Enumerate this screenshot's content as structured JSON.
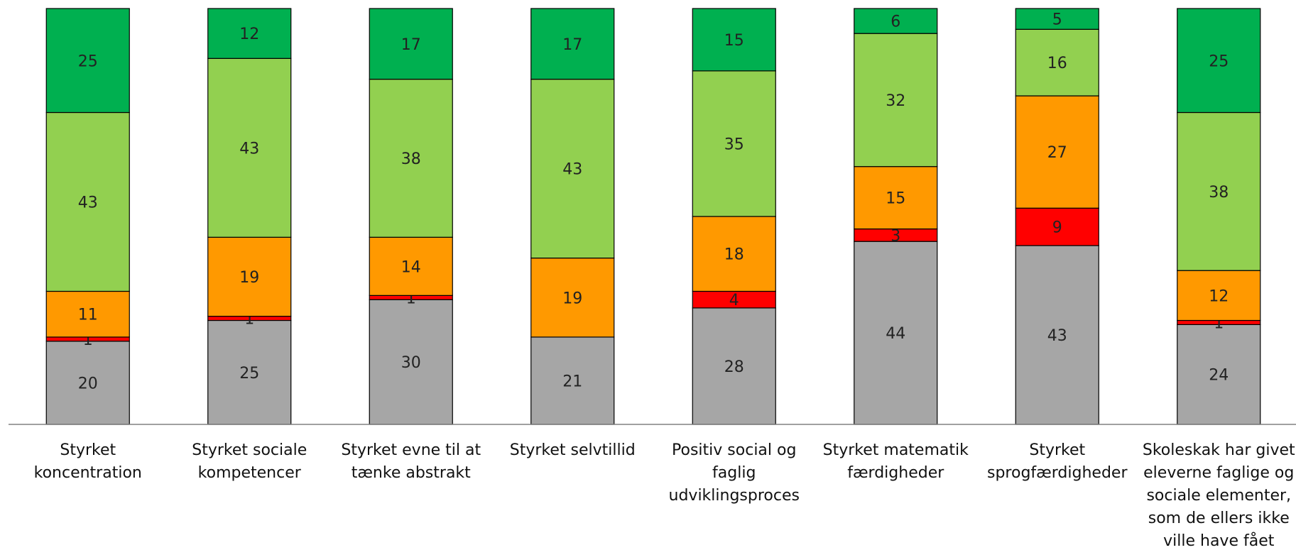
{
  "chart_data": {
    "type": "bar",
    "stacked": true,
    "normalized_percent": true,
    "categories": [
      "Styrket koncentration",
      "Styrket sociale kompetencer",
      "Styrket evne til at tænke abstrakt",
      "Styrket selvtillid",
      "Positiv social og faglig udviklingsproces",
      "Styrket matematik færdigheder",
      "Styrket sprogfærdigheder",
      "Skoleskak har givet eleverne faglige og sociale elementer, som de ellers ikke ville have fået"
    ],
    "category_lines": [
      [
        "Styrket",
        "koncentration"
      ],
      [
        "Styrket sociale",
        "kompetencer"
      ],
      [
        "Styrket evne til at",
        "tænke abstrakt"
      ],
      [
        "Styrket selvtillid"
      ],
      [
        "Positiv social og",
        "faglig",
        "udviklingsproces"
      ],
      [
        "Styrket matematik",
        "færdigheder"
      ],
      [
        "Styrket",
        "sprogfærdigheder"
      ],
      [
        "Skoleskak har givet",
        "eleverne faglige og",
        "sociale elementer,",
        "som de ellers ikke",
        "ville have fået"
      ]
    ],
    "series": [
      {
        "color": "#a6a6a6",
        "values": [
          20,
          25,
          30,
          21,
          28,
          44,
          43,
          24
        ]
      },
      {
        "color": "#ff0000",
        "values": [
          1,
          1,
          1,
          0,
          4,
          3,
          9,
          1
        ]
      },
      {
        "color": "#ff9900",
        "values": [
          11,
          19,
          14,
          19,
          18,
          15,
          27,
          12
        ]
      },
      {
        "color": "#92d050",
        "values": [
          43,
          43,
          38,
          43,
          35,
          32,
          16,
          38
        ]
      },
      {
        "color": "#00b050",
        "values": [
          25,
          12,
          17,
          17,
          15,
          6,
          5,
          25
        ]
      }
    ],
    "legend": "none",
    "grid": false
  }
}
